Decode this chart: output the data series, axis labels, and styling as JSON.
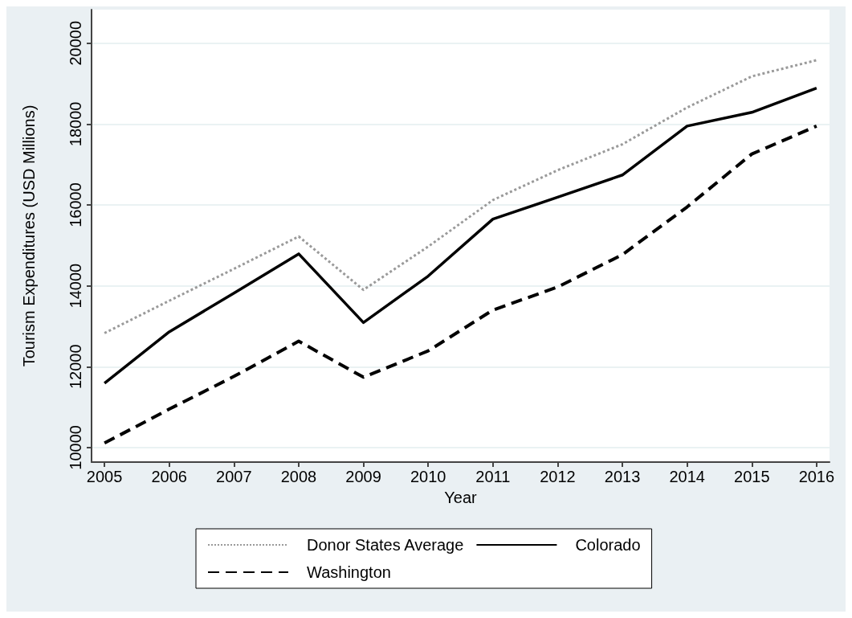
{
  "chart_data": {
    "type": "line",
    "xlabel": "Year",
    "ylabel": "Tourism Expenditures (USD Millions)",
    "x": [
      2005,
      2006,
      2007,
      2008,
      2009,
      2010,
      2011,
      2012,
      2013,
      2014,
      2015,
      2016
    ],
    "series": [
      {
        "name": "Donor States Average",
        "color": "#9a9a9a",
        "line_style": "dotted",
        "values": [
          12830,
          13630,
          14420,
          15220,
          13900,
          14970,
          16120,
          16860,
          17500,
          18410,
          19180,
          19580
        ]
      },
      {
        "name": "Colorado",
        "color": "#000000",
        "line_style": "solid",
        "values": [
          11590,
          12860,
          13820,
          14790,
          13090,
          14240,
          15650,
          16190,
          16740,
          17950,
          18290,
          18890
        ]
      },
      {
        "name": "Washington",
        "color": "#000000",
        "line_style": "dashed",
        "values": [
          10110,
          10950,
          11760,
          12630,
          11740,
          12390,
          13400,
          13970,
          14770,
          15950,
          17260,
          17950
        ]
      }
    ],
    "xlim": [
      2004.8,
      2016.2
    ],
    "xticks": [
      2005,
      2006,
      2007,
      2008,
      2009,
      2010,
      2011,
      2012,
      2013,
      2014,
      2015,
      2016
    ],
    "ylim": [
      9640,
      20830
    ],
    "yticks": [
      10000,
      12000,
      14000,
      16000,
      18000,
      20000
    ],
    "grid": "y",
    "legend": "bottom",
    "marker": "none"
  }
}
